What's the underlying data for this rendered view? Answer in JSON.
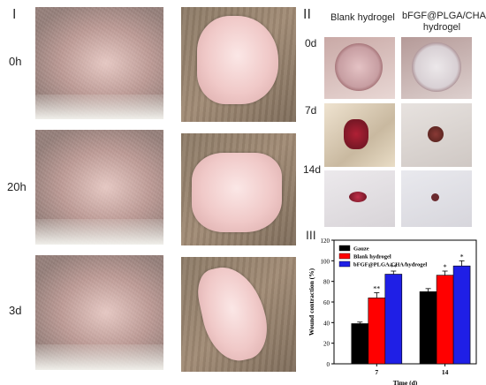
{
  "panels": {
    "panel1_label": "I",
    "panel2_label": "II",
    "panel3_label": "III"
  },
  "rows_left": [
    "0h",
    "20h",
    "3d"
  ],
  "col_headers": [
    "Blank hydrogel",
    "bFGF@PLGA/CHA/\nhydrogel"
  ],
  "col_header_2_line1": "bFGF@PLGA/CHA/",
  "col_header_2_line2": "hydrogel",
  "rows_right": [
    "0d",
    "7d",
    "14d"
  ],
  "colors": {
    "gauze": "#000000",
    "blank": "#ff0000",
    "bfgf": "#1f1fe6"
  },
  "chart_data": {
    "type": "bar",
    "categories": [
      "7",
      "14"
    ],
    "series": [
      {
        "name": "Gauze",
        "values": [
          39,
          70
        ],
        "errors": [
          1.5,
          3
        ],
        "marks": [
          "",
          ""
        ]
      },
      {
        "name": "Blank hydrogel",
        "values": [
          64,
          86
        ],
        "errors": [
          5,
          4
        ],
        "marks": [
          "**",
          "*"
        ]
      },
      {
        "name": "bFGF@PLGA/CHA/hydrogel",
        "values": [
          87,
          95
        ],
        "errors": [
          3,
          5
        ],
        "marks": [
          "**",
          "*"
        ]
      }
    ],
    "xlabel": "Time (d)",
    "ylabel": "Wound contraction (%)",
    "ylim": [
      0,
      120
    ],
    "yticks": [
      "0",
      "20",
      "40",
      "60",
      "80",
      "100",
      "120"
    ],
    "legend_position": "top-left"
  }
}
